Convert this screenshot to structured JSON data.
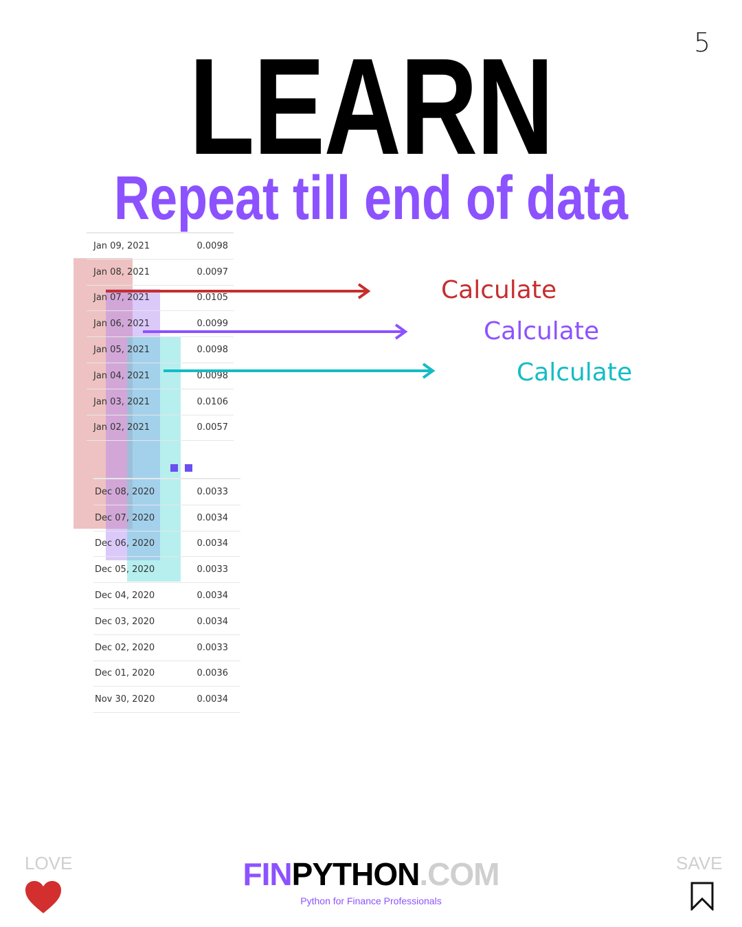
{
  "page_number": "5",
  "title": "LEARN",
  "subtitle": "Repeat till end of data",
  "table_top": [
    {
      "date": "Jan 09, 2021",
      "value": "0.0098"
    },
    {
      "date": "Jan 08, 2021",
      "value": "0.0097"
    },
    {
      "date": "Jan 07, 2021",
      "value": "0.0105"
    },
    {
      "date": "Jan 06, 2021",
      "value": "0.0099"
    },
    {
      "date": "Jan 05, 2021",
      "value": "0.0098"
    },
    {
      "date": "Jan 04, 2021",
      "value": "0.0098"
    },
    {
      "date": "Jan 03, 2021",
      "value": "0.0106"
    },
    {
      "date": "Jan 02, 2021",
      "value": "0.0057"
    }
  ],
  "table_bottom": [
    {
      "date": "Dec 08, 2020",
      "value": "0.0033"
    },
    {
      "date": "Dec 07, 2020",
      "value": "0.0034"
    },
    {
      "date": "Dec 06, 2020",
      "value": "0.0034"
    },
    {
      "date": "Dec 05, 2020",
      "value": "0.0033"
    },
    {
      "date": "Dec 04, 2020",
      "value": "0.0034"
    },
    {
      "date": "Dec 03, 2020",
      "value": "0.0034"
    },
    {
      "date": "Dec 02, 2020",
      "value": "0.0033"
    },
    {
      "date": "Dec 01, 2020",
      "value": "0.0036"
    },
    {
      "date": "Nov 30, 2020",
      "value": "0.0034"
    }
  ],
  "calculate_labels": [
    "Calculate",
    "Calculate",
    "Calculate"
  ],
  "colors": {
    "red": "#c62e2e",
    "purple": "#8c52ff",
    "cyan": "#14bcc4"
  },
  "footer": {
    "love_label": "LOVE",
    "save_label": "SAVE",
    "brand_fin": "FIN",
    "brand_python": "PYTHON",
    "brand_com": ".COM",
    "tagline": "Python for Finance Professionals",
    "love_icon": "heart-icon",
    "save_icon": "bookmark-icon"
  }
}
